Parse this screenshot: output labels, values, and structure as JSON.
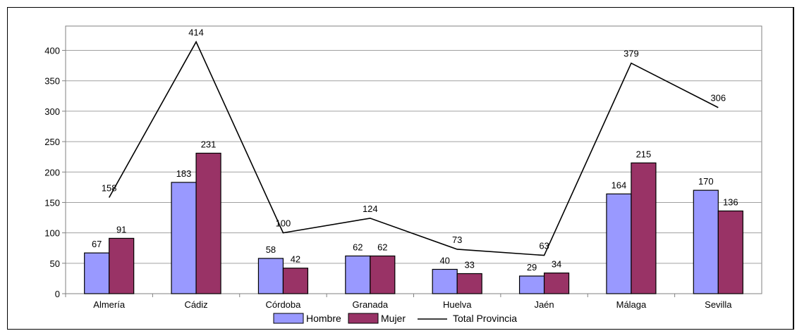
{
  "chart_data": {
    "type": "bar",
    "categories": [
      "Almería",
      "Cádiz",
      "Córdoba",
      "Granada",
      "Huelva",
      "Jaén",
      "Málaga",
      "Sevilla"
    ],
    "series": [
      {
        "name": "Hombre",
        "type": "bar",
        "color": "#9999ff",
        "values": [
          67,
          183,
          58,
          62,
          40,
          29,
          164,
          170
        ]
      },
      {
        "name": "Mujer",
        "type": "bar",
        "color": "#993366",
        "values": [
          91,
          231,
          42,
          62,
          33,
          34,
          215,
          136
        ]
      },
      {
        "name": "Total Provincia",
        "type": "line",
        "color": "#000000",
        "values": [
          158,
          414,
          100,
          124,
          73,
          63,
          379,
          306
        ]
      }
    ],
    "yticks": [
      0,
      50,
      100,
      150,
      200,
      250,
      300,
      350,
      400
    ],
    "ylim": [
      0,
      440
    ],
    "grid": true,
    "legend_position": "bottom",
    "plot_background": "#ffffff",
    "grid_color": "#a0a0a0"
  }
}
